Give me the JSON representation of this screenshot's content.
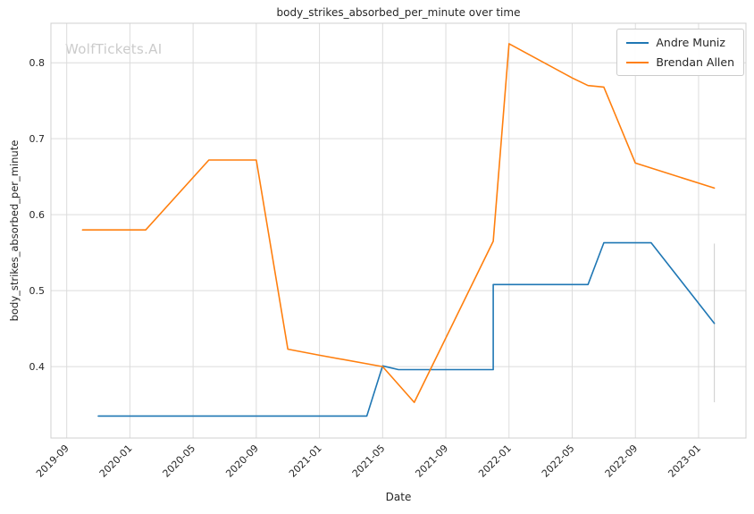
{
  "watermark": "WolfTickets.AI",
  "colors": {
    "background": "#ffffff",
    "grid": "#dcdcdc",
    "spine": "#d0d0d0",
    "text": "#262626",
    "watermark": "#cbcbcb"
  },
  "chart_data": {
    "type": "line",
    "title": "body_strikes_absorbed_per_minute over time",
    "xlabel": "Date",
    "ylabel": "body_strikes_absorbed_per_minute",
    "grid": true,
    "legend_position": "upper right",
    "x_tick_labels": [
      "2019-09",
      "2020-01",
      "2020-05",
      "2020-09",
      "2021-01",
      "2021-05",
      "2021-09",
      "2022-01",
      "2022-05",
      "2022-09",
      "2023-01"
    ],
    "y_ticks": [
      0.4,
      0.5,
      0.6,
      0.7,
      0.8
    ],
    "x_range": [
      "2019-08",
      "2023-04"
    ],
    "y_range": [
      0.306,
      0.852
    ],
    "series": [
      {
        "name": "Andre Muniz",
        "color": "#1f77b4",
        "points": [
          [
            "2019-11",
            0.335
          ],
          [
            "2021-04",
            0.335
          ],
          [
            "2021-05",
            0.401
          ],
          [
            "2021-06",
            0.396
          ],
          [
            "2021-12",
            0.396
          ],
          [
            "2021-12",
            0.508
          ],
          [
            "2022-06",
            0.508
          ],
          [
            "2022-07",
            0.563
          ],
          [
            "2022-10",
            0.563
          ],
          [
            "2023-02",
            0.457
          ]
        ]
      },
      {
        "name": "Brendan Allen",
        "color": "#ff7f0e",
        "points": [
          [
            "2019-10",
            0.58
          ],
          [
            "2020-02",
            0.58
          ],
          [
            "2020-06",
            0.672
          ],
          [
            "2020-09",
            0.672
          ],
          [
            "2020-11",
            0.423
          ],
          [
            "2021-01",
            0.415
          ],
          [
            "2021-05",
            0.4
          ],
          [
            "2021-07",
            0.353
          ],
          [
            "2021-12",
            0.565
          ],
          [
            "2022-01",
            0.825
          ],
          [
            "2022-05",
            0.78
          ],
          [
            "2022-06",
            0.77
          ],
          [
            "2022-07",
            0.768
          ],
          [
            "2022-09",
            0.668
          ],
          [
            "2023-02",
            0.635
          ]
        ]
      }
    ],
    "annotation_line": {
      "x": "2023-02",
      "y_top": 0.562,
      "y_bottom": 0.353,
      "color": "#cccccc"
    }
  }
}
